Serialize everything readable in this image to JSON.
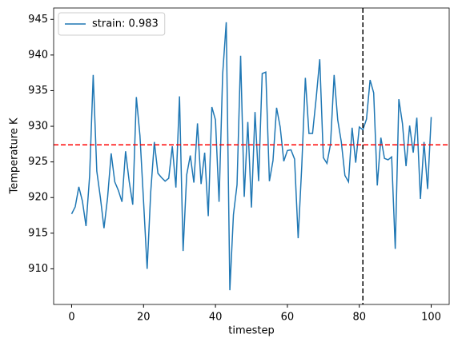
{
  "chart_data": {
    "type": "line",
    "xlabel": "timestep",
    "ylabel": "Temperature K",
    "x": [
      0,
      1,
      2,
      3,
      4,
      5,
      6,
      7,
      8,
      9,
      10,
      11,
      12,
      13,
      14,
      15,
      16,
      17,
      18,
      19,
      20,
      21,
      22,
      23,
      24,
      25,
      26,
      27,
      28,
      29,
      30,
      31,
      32,
      33,
      34,
      35,
      36,
      37,
      38,
      39,
      40,
      41,
      42,
      43,
      44,
      45,
      46,
      47,
      48,
      49,
      50,
      51,
      52,
      53,
      54,
      55,
      56,
      57,
      58,
      59,
      60,
      61,
      62,
      63,
      64,
      65,
      66,
      67,
      68,
      69,
      70,
      71,
      72,
      73,
      74,
      75,
      76,
      77,
      78,
      79,
      80,
      81,
      82,
      83,
      84,
      85,
      86,
      87,
      88,
      89,
      90,
      91,
      92,
      93,
      94,
      95,
      96,
      97,
      98,
      99,
      100
    ],
    "series": [
      {
        "name": "strain: 0.983",
        "color": "#1f77b4",
        "values": [
          917.7,
          918.7,
          921.5,
          919.5,
          916,
          923,
          937.2,
          923.7,
          920,
          915.7,
          920,
          926.2,
          922.2,
          921,
          919.4,
          926.5,
          922.3,
          919,
          934.1,
          928.7,
          919.5,
          910,
          920.8,
          927.8,
          923.4,
          922.8,
          922.3,
          922.7,
          927.2,
          921.4,
          934.2,
          912.5,
          923.2,
          925.9,
          922.1,
          930.4,
          921.9,
          926.3,
          917.4,
          932.7,
          930.9,
          919.4,
          937.3,
          944.6,
          907,
          917.6,
          921.8,
          939.9,
          920.1,
          930.6,
          918.6,
          932,
          922.3,
          937.4,
          937.6,
          922.3,
          925.2,
          932.6,
          929.9,
          925.1,
          926.6,
          926.7,
          925.4,
          914.3,
          924.4,
          936.8,
          929,
          929,
          933.9,
          939.4,
          925.6,
          924.8,
          927.5,
          937.2,
          930.9,
          927.8,
          923.1,
          922.2,
          929.8,
          924.9,
          929.9,
          929.5,
          931,
          936.5,
          934.7,
          921.7,
          928.4,
          925.5,
          925.3,
          925.7,
          912.8,
          933.8,
          930.4,
          924.4,
          930.1,
          926.3,
          931.2,
          919.8,
          927.8,
          921.2,
          931.3
        ]
      }
    ],
    "hline": {
      "value": 927.4,
      "color": "#ff0000"
    },
    "vline": {
      "value": 81,
      "color": "#000000"
    },
    "xlim": [
      -5,
      105
    ],
    "xticks": [
      0,
      20,
      40,
      60,
      80,
      100
    ],
    "ylim": [
      905,
      946.6
    ],
    "yticks": [
      910,
      915,
      920,
      925,
      930,
      935,
      940,
      945
    ],
    "legend": "upper left"
  }
}
